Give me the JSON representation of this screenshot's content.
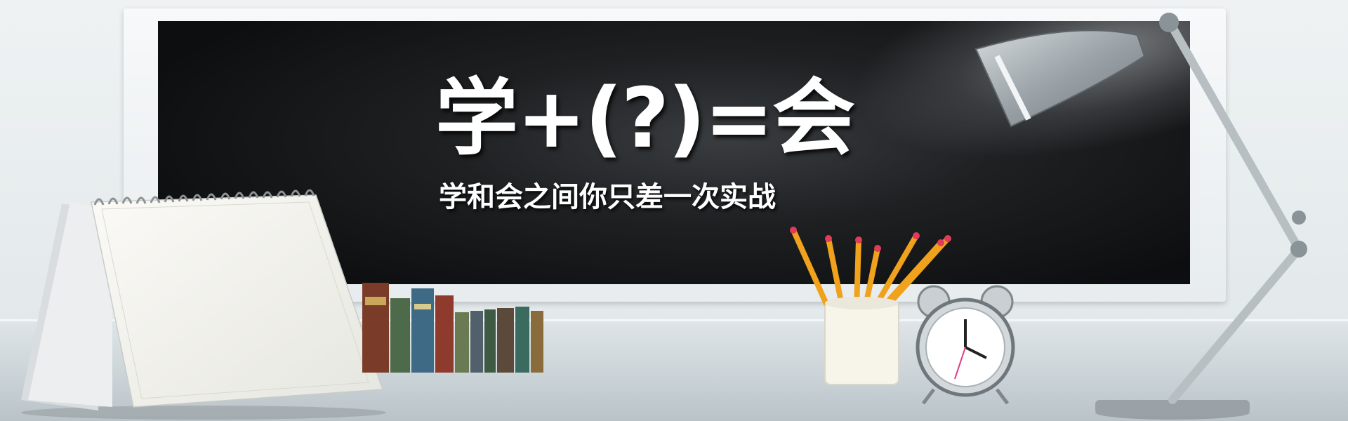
{
  "banner": {
    "headline": "学+(?)=会",
    "subline": "学和会之间你只差一次实战"
  },
  "colors": {
    "board": "#151617",
    "frame": "#eef2f3",
    "text": "#ffffff",
    "pencil": "#f0a21c",
    "desk": "#d4dbde"
  },
  "objects": {
    "calendar": "desk-calendar-icon",
    "books": "book-row-icon",
    "pencil_cup": "pencil-cup-icon",
    "clock": "alarm-clock-icon",
    "lamp": "desk-lamp-icon"
  }
}
